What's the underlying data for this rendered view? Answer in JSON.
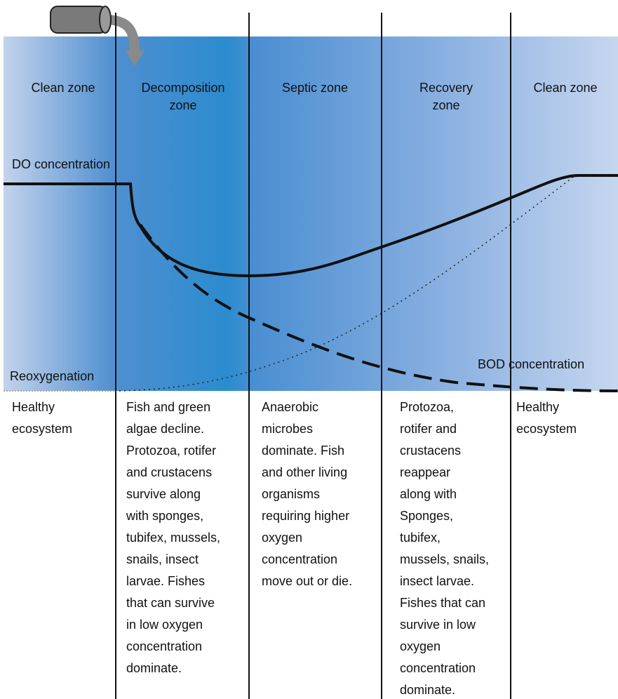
{
  "zones": [
    {
      "label": [
        "Clean zone"
      ],
      "description": [
        "Healthy",
        "ecosystem"
      ]
    },
    {
      "label": [
        "Decomposition",
        "zone"
      ],
      "description": [
        "Fish and green",
        "algae decline.",
        "Protozoa, rotifer",
        "and crustacens",
        "survive along",
        "with sponges,",
        "tubifex, mussels,",
        "snails, insect",
        "larvae. Fishes",
        "that can survive",
        "in low oxygen",
        "concentration",
        "dominate."
      ]
    },
    {
      "label": [
        "Septic zone"
      ],
      "description": [
        "Anaerobic",
        "microbes",
        "dominate. Fish",
        "and other living",
        "organisms",
        "requiring higher",
        "oxygen",
        "concentration",
        "move out or die."
      ]
    },
    {
      "label": [
        "Recovery",
        "zone"
      ],
      "description": [
        "Protozoa,",
        "rotifer and",
        "crustacens",
        "reappear",
        "along with",
        "Sponges,",
        "tubifex,",
        "mussels, snails,",
        "insect larvae.",
        "Fishes that can",
        "survive in low",
        "oxygen",
        "concentration",
        "dominate."
      ]
    },
    {
      "label": [
        "Clean zone"
      ],
      "description": [
        "Healthy",
        "ecosystem"
      ]
    }
  ],
  "curves": {
    "do": "DO concentration",
    "reoxygenation": "Reoxygenation",
    "bod": "BOD concentration"
  }
}
